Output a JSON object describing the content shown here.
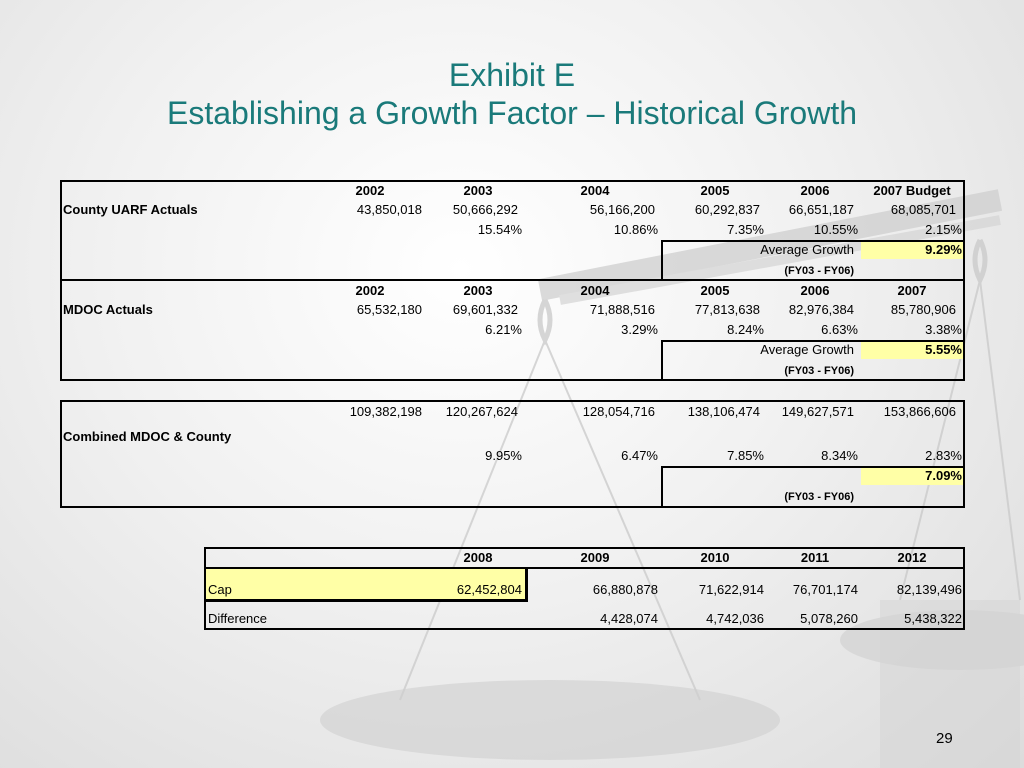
{
  "title": {
    "line1": "Exhibit E",
    "line2": "Establishing a Growth Factor – Historical Growth"
  },
  "county": {
    "years": [
      "2002",
      "2003",
      "2004",
      "2005",
      "2006",
      "2007 Budget"
    ],
    "label": "County UARF Actuals",
    "values": [
      "43,850,018",
      "50,666,292",
      "56,166,200",
      "60,292,837",
      "66,651,187",
      "68,085,701"
    ],
    "growth": [
      "15.54%",
      "10.86%",
      "7.35%",
      "10.55%",
      "2.15%"
    ],
    "avg_label": "Average Growth",
    "avg_value": "9.29%",
    "period": "(FY03 - FY06)"
  },
  "mdoc": {
    "years": [
      "2002",
      "2003",
      "2004",
      "2005",
      "2006",
      "2007"
    ],
    "label": "MDOC Actuals",
    "values": [
      "65,532,180",
      "69,601,332",
      "71,888,516",
      "77,813,638",
      "82,976,384",
      "85,780,906"
    ],
    "growth": [
      "6.21%",
      "3.29%",
      "8.24%",
      "6.63%",
      "3.38%"
    ],
    "avg_label": "Average Growth",
    "avg_value": "5.55%",
    "period": "(FY03 - FY06)"
  },
  "combined": {
    "values": [
      "109,382,198",
      "120,267,624",
      "128,054,716",
      "138,106,474",
      "149,627,571",
      "153,866,606"
    ],
    "label": "Combined MDOC & County",
    "growth": [
      "9.95%",
      "6.47%",
      "7.85%",
      "8.34%",
      "2.83%"
    ],
    "avg_value": "7.09%",
    "period": "(FY03 - FY06)"
  },
  "projection": {
    "years": [
      "2008",
      "2009",
      "2010",
      "2011",
      "2012"
    ],
    "cap_label": "Cap",
    "cap_values": [
      "62,452,804",
      "66,880,878",
      "71,622,914",
      "76,701,174",
      "82,139,496"
    ],
    "diff_label": "Difference",
    "diff_values": [
      "4,428,074",
      "4,742,036",
      "5,078,260",
      "5,438,322"
    ]
  },
  "page_number": "29",
  "colors": {
    "title": "#1a7a7a",
    "highlight": "#ffffa6"
  }
}
